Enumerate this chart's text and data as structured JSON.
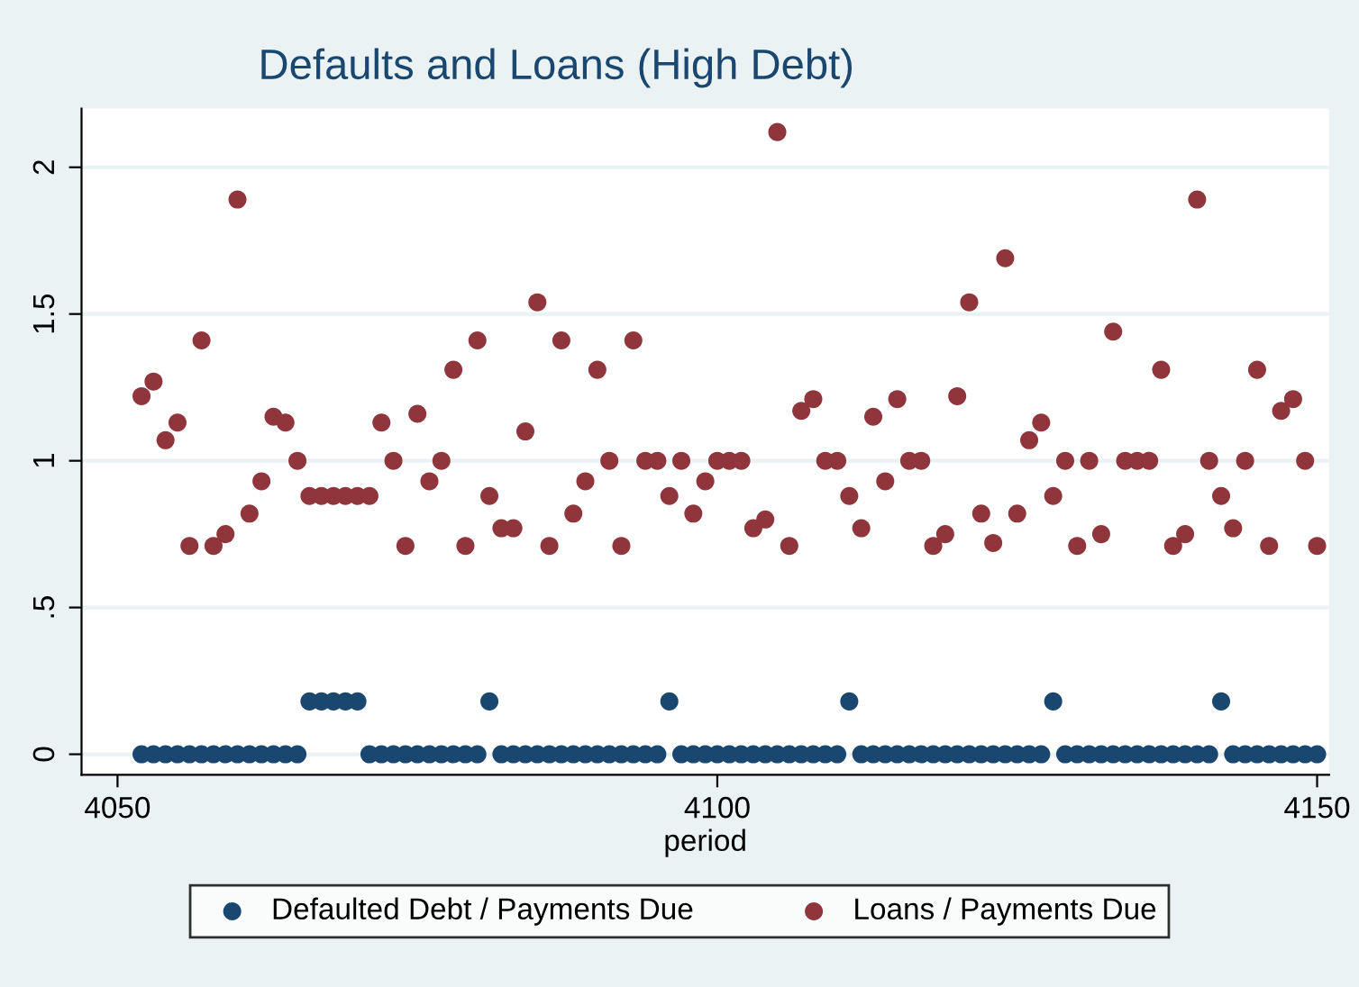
{
  "chart_data": {
    "type": "scatter",
    "title": "Defaults and Loans (High Debt)",
    "xlabel": "period",
    "x": [
      4052,
      4053,
      4054,
      4055,
      4056,
      4057,
      4058,
      4059,
      4060,
      4061,
      4062,
      4063,
      4064,
      4065,
      4066,
      4067,
      4068,
      4069,
      4070,
      4071,
      4072,
      4073,
      4074,
      4075,
      4076,
      4077,
      4078,
      4079,
      4080,
      4081,
      4082,
      4083,
      4084,
      4085,
      4086,
      4087,
      4088,
      4089,
      4090,
      4091,
      4092,
      4093,
      4094,
      4095,
      4096,
      4097,
      4098,
      4099,
      4100,
      4101,
      4102,
      4103,
      4104,
      4105,
      4106,
      4107,
      4108,
      4109,
      4110,
      4111,
      4112,
      4113,
      4114,
      4115,
      4116,
      4117,
      4118,
      4119,
      4120,
      4121,
      4122,
      4123,
      4124,
      4125,
      4126,
      4127,
      4128,
      4129,
      4130,
      4131,
      4132,
      4133,
      4134,
      4135,
      4136,
      4137,
      4138,
      4139,
      4140,
      4141,
      4142,
      4143,
      4144,
      4145,
      4146,
      4147,
      4148,
      4149,
      4150
    ],
    "series": [
      {
        "name": "Defaulted Debt / Payments Due",
        "color": "#1a476f",
        "values": [
          0,
          0,
          0,
          0,
          0,
          0,
          0,
          0,
          0,
          0,
          0,
          0,
          0,
          0,
          0.18,
          0.18,
          0.18,
          0.18,
          0.18,
          0,
          0,
          0,
          0,
          0,
          0,
          0,
          0,
          0,
          0,
          0.18,
          0,
          0,
          0,
          0,
          0,
          0,
          0,
          0,
          0,
          0,
          0,
          0,
          0,
          0,
          0.18,
          0,
          0,
          0,
          0,
          0,
          0,
          0,
          0,
          0,
          0,
          0,
          0,
          0,
          0,
          0.18,
          0,
          0,
          0,
          0,
          0,
          0,
          0,
          0,
          0,
          0,
          0,
          0,
          0,
          0,
          0,
          0,
          0.18,
          0,
          0,
          0,
          0,
          0,
          0,
          0,
          0,
          0,
          0,
          0,
          0,
          0,
          0.18,
          0,
          0,
          0,
          0,
          0,
          0,
          0,
          0
        ]
      },
      {
        "name": "Loans / Payments Due",
        "color": "#90353b",
        "values": [
          1.22,
          1.27,
          1.07,
          1.13,
          0.71,
          1.41,
          0.71,
          0.75,
          1.89,
          0.82,
          0.93,
          1.15,
          1.13,
          1.0,
          0.88,
          0.88,
          0.88,
          0.88,
          0.88,
          0.88,
          1.13,
          1.0,
          0.71,
          1.16,
          0.93,
          1.0,
          1.31,
          0.71,
          1.41,
          0.88,
          0.77,
          0.77,
          1.1,
          1.54,
          0.71,
          1.41,
          0.82,
          0.93,
          1.31,
          1.0,
          0.71,
          1.41,
          1.0,
          1.0,
          0.88,
          1.0,
          0.82,
          0.93,
          1.0,
          1.0,
          1.0,
          0.77,
          0.8,
          2.12,
          0.71,
          1.17,
          1.21,
          1.0,
          1.0,
          0.88,
          0.77,
          1.15,
          0.93,
          1.21,
          1.0,
          1.0,
          0.71,
          0.75,
          1.22,
          1.54,
          0.82,
          0.72,
          1.69,
          0.82,
          1.07,
          1.13,
          0.88,
          1.0,
          0.71,
          1.0,
          0.75,
          1.44,
          1.0,
          1.0,
          1.0,
          1.31,
          0.71,
          0.75,
          1.89,
          1.0,
          0.88,
          0.77,
          1.0,
          1.31,
          0.71,
          1.17,
          1.21,
          1.0,
          0.71
        ]
      }
    ],
    "xlim": [
      4047,
      4151
    ],
    "xticks": [
      4050,
      4100,
      4150
    ],
    "ylim": [
      -0.07,
      2.2
    ],
    "yticks": [
      0,
      {
        "value": 0.5,
        "label": ".5"
      },
      1,
      1.5,
      2
    ],
    "grid": "y",
    "legend": "bottom",
    "marker": "circle"
  }
}
